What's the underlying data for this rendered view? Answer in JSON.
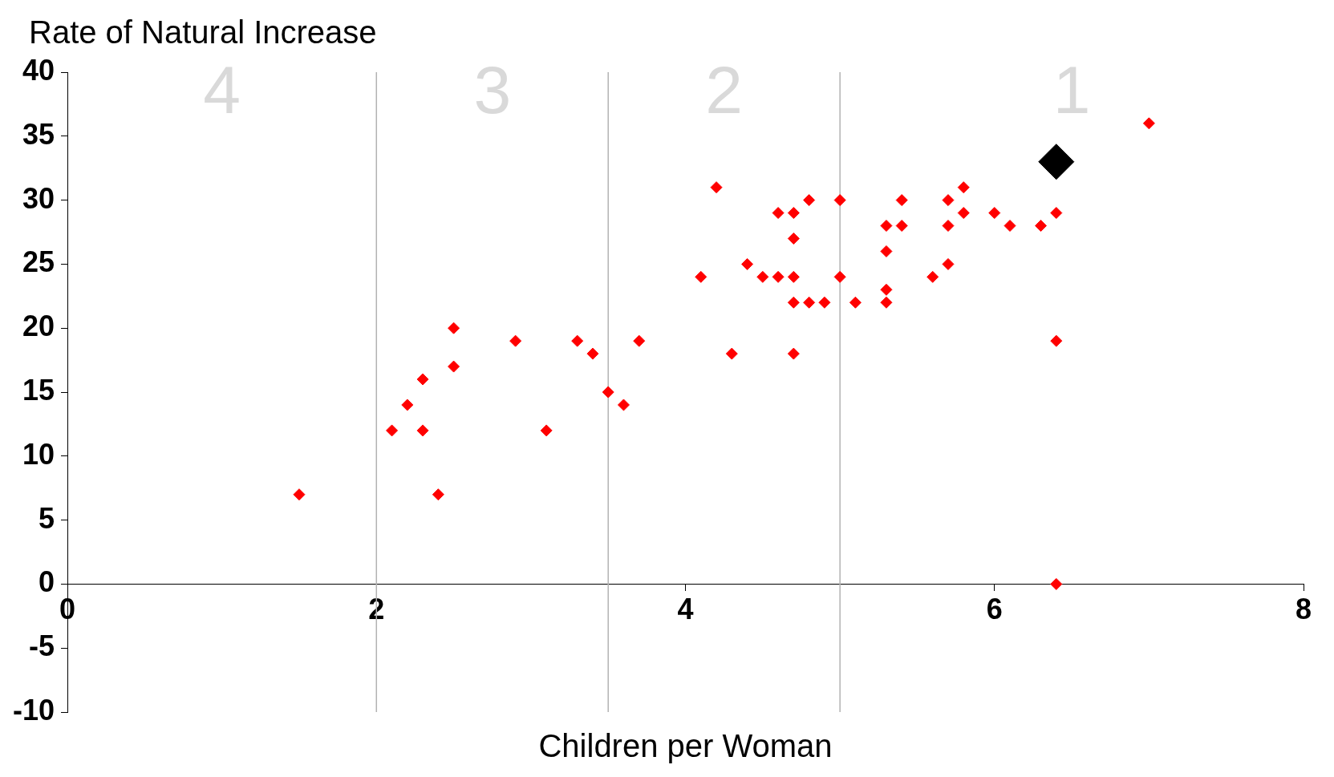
{
  "chart_data": {
    "type": "scatter",
    "xlabel": "Children per Woman",
    "ylabel": "Rate of Natural Increase",
    "xlim": [
      0,
      8
    ],
    "xticks": [
      0,
      2,
      4,
      6,
      8
    ],
    "ylim": [
      -10,
      40
    ],
    "yticks": [
      -10,
      -5,
      0,
      5,
      10,
      15,
      20,
      25,
      30,
      35,
      40
    ],
    "grid": false,
    "legend": false,
    "marker": "diamond",
    "series": [
      {
        "color": "#ff0000",
        "x": [
          1.5,
          2.1,
          2.2,
          2.3,
          2.3,
          2.4,
          2.5,
          2.5,
          2.9,
          3.1,
          3.3,
          3.4,
          3.5,
          3.6,
          3.7,
          4.1,
          4.2,
          4.3,
          4.4,
          4.5,
          4.6,
          4.6,
          4.7,
          4.7,
          4.7,
          4.7,
          4.7,
          4.8,
          4.8,
          4.9,
          5.0,
          5.0,
          5.1,
          5.3,
          5.3,
          5.3,
          5.3,
          5.4,
          5.4,
          5.6,
          5.7,
          5.7,
          5.7,
          5.8,
          5.8,
          6.0,
          6.1,
          6.3,
          6.4,
          6.4,
          6.4,
          7.0
        ],
        "values": [
          7,
          12,
          14,
          16,
          12,
          7,
          20,
          17,
          19,
          12,
          19,
          18,
          15,
          14,
          19,
          24,
          31,
          18,
          25,
          24,
          29,
          24,
          29,
          27,
          24,
          22,
          18,
          30,
          22,
          22,
          30,
          24,
          22,
          28,
          26,
          23,
          22,
          30,
          28,
          24,
          30,
          28,
          25,
          31,
          29,
          29,
          28,
          28,
          29,
          19,
          0,
          36
        ]
      },
      {
        "color": "#000000",
        "x": [
          6.4
        ],
        "values": [
          33
        ]
      }
    ],
    "ref_lines": [
      {
        "axis": "x",
        "value": 2,
        "label": null,
        "color": "#b3b3b3"
      },
      {
        "axis": "x",
        "value": 3.5,
        "label": null,
        "color": "#b3b3b3"
      },
      {
        "axis": "x",
        "value": 5,
        "label": null,
        "color": "#b3b3b3"
      }
    ],
    "annotations": [
      "4",
      "3",
      "2",
      "1"
    ]
  }
}
